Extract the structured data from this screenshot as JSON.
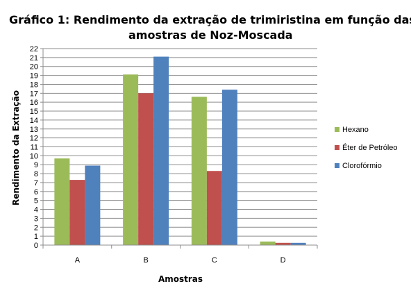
{
  "chart_data": {
    "type": "bar",
    "title_lines": [
      "Gráfico 1: Rendimento da extração de trimiristina em função das",
      "amostras de Noz-Moscada"
    ],
    "xlabel": "Amostras",
    "ylabel": "Rendimento da Extração",
    "categories": [
      "A",
      "B",
      "C",
      "D"
    ],
    "series": [
      {
        "name": "Hexano",
        "color": "#9BBB59",
        "values": [
          9.7,
          19.1,
          16.6,
          0.4
        ]
      },
      {
        "name": "Éter de Petróleo",
        "color": "#C0504D",
        "values": [
          7.3,
          17.0,
          8.3,
          0.25
        ]
      },
      {
        "name": "Clorofórmio",
        "color": "#4F81BD",
        "values": [
          8.9,
          21.1,
          17.4,
          0.25
        ]
      }
    ],
    "ylim": [
      0,
      22
    ],
    "yticks": [
      "0",
      "1",
      "2",
      "3",
      "4",
      "5",
      "6",
      "7",
      "8",
      "9",
      "10",
      "11",
      "12",
      "13",
      "14",
      "15",
      "16",
      "17",
      "18",
      "19",
      "20",
      "21",
      "22"
    ],
    "grid": true,
    "legend_position": "right"
  }
}
